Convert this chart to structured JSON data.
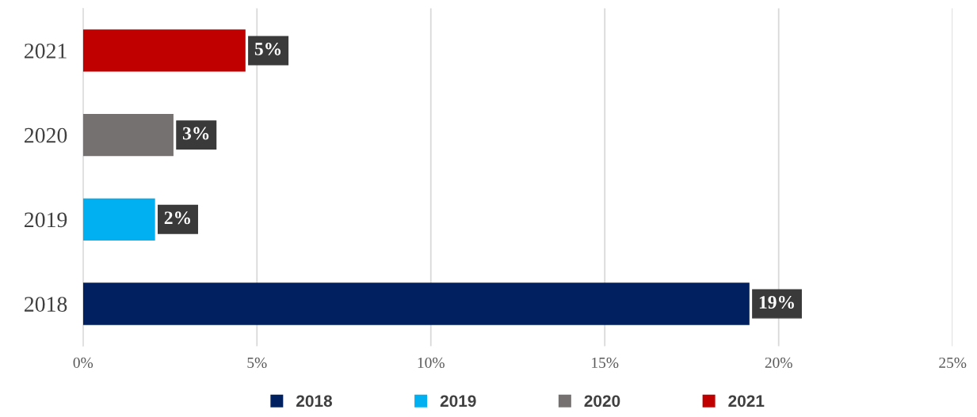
{
  "chart_data": {
    "type": "bar",
    "orientation": "horizontal",
    "stacked": true,
    "categories": [
      "2021",
      "2020",
      "2019",
      "2018"
    ],
    "series": [
      {
        "name": "2018",
        "color": "#002060",
        "values": [
          null,
          null,
          null,
          19.16
        ],
        "value_labels": [
          null,
          null,
          null,
          "19%"
        ]
      },
      {
        "name": "2019",
        "color": "#00b0f0",
        "values": [
          null,
          null,
          2.07,
          null
        ],
        "value_labels": [
          null,
          null,
          "2%",
          null
        ]
      },
      {
        "name": "2020",
        "color": "#767171",
        "values": [
          null,
          2.6,
          null,
          null
        ],
        "value_labels": [
          null,
          "3%",
          null,
          null
        ]
      },
      {
        "name": "2021",
        "color": "#c00000",
        "values": [
          4.67,
          null,
          null,
          null
        ],
        "value_labels": [
          "5%",
          null,
          null,
          null
        ]
      }
    ],
    "xlim": [
      0,
      25
    ],
    "xticks": [
      {
        "value": 0,
        "label": "0%"
      },
      {
        "value": 5,
        "label": "5%"
      },
      {
        "value": 10,
        "label": "10%"
      },
      {
        "value": 15,
        "label": "15%"
      },
      {
        "value": 20,
        "label": "20%"
      },
      {
        "value": 25,
        "label": "25%"
      }
    ],
    "grid": "x",
    "legend": "bottom"
  }
}
